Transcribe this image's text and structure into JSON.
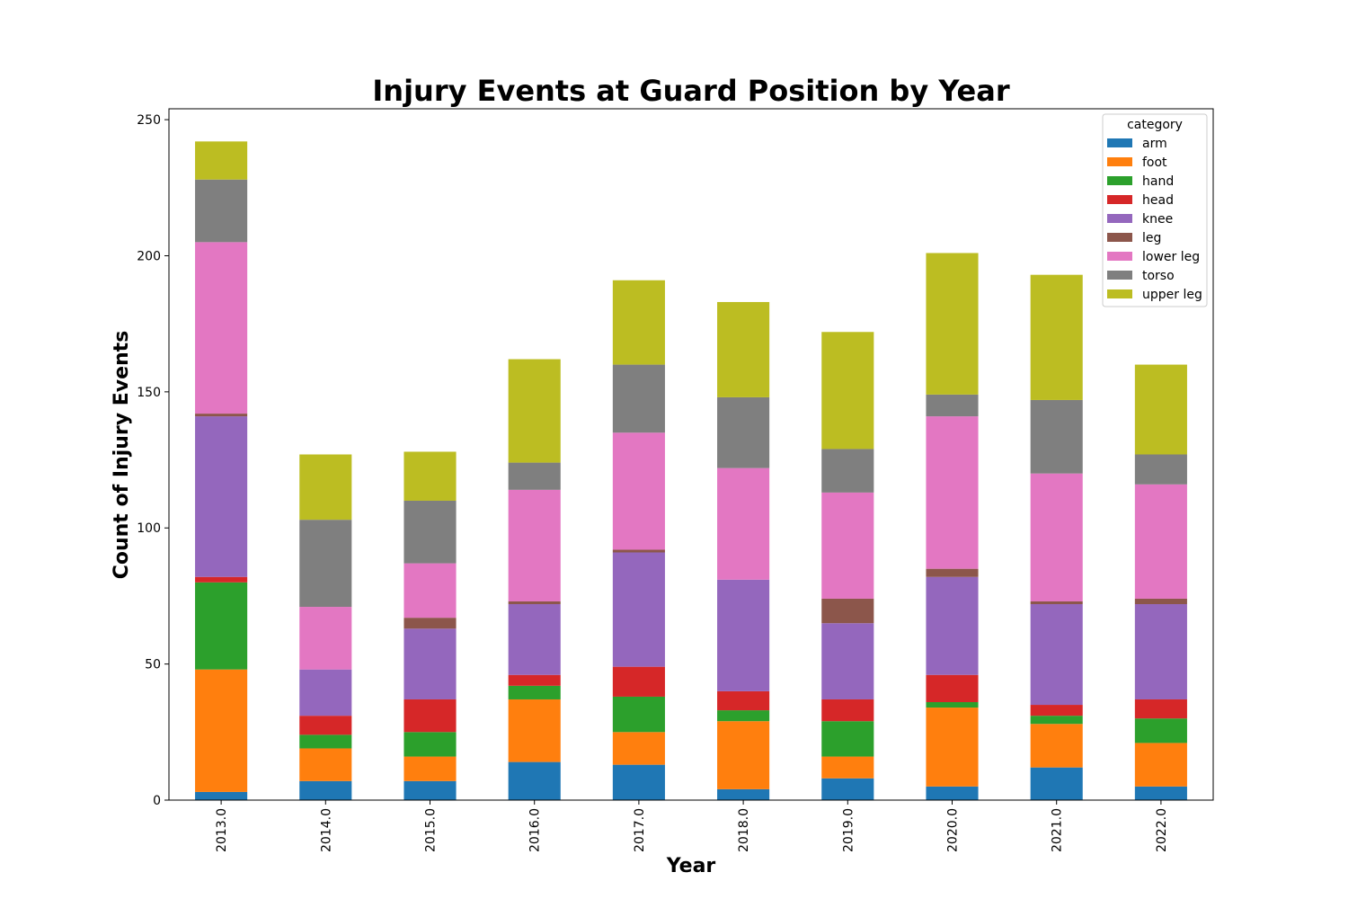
{
  "chart_data": {
    "type": "bar",
    "stacked": true,
    "title": "Injury Events at Guard Position by Year",
    "xlabel": "Year",
    "ylabel": "Count of Injury Events",
    "ylim": [
      0,
      254
    ],
    "yticks": [
      0,
      50,
      100,
      150,
      200,
      250
    ],
    "grid": false,
    "legend_title": "category",
    "legend_position": "top-right",
    "categories": [
      "2013.0",
      "2014.0",
      "2015.0",
      "2016.0",
      "2017.0",
      "2018.0",
      "2019.0",
      "2020.0",
      "2021.0",
      "2022.0"
    ],
    "series": [
      {
        "name": "arm",
        "color": "#1f77b4",
        "values": [
          3,
          7,
          7,
          14,
          13,
          4,
          8,
          5,
          12,
          5
        ]
      },
      {
        "name": "foot",
        "color": "#ff7f0e",
        "values": [
          45,
          12,
          9,
          23,
          12,
          25,
          8,
          29,
          16,
          16
        ]
      },
      {
        "name": "hand",
        "color": "#2ca02c",
        "values": [
          32,
          5,
          9,
          5,
          13,
          4,
          13,
          2,
          3,
          9
        ]
      },
      {
        "name": "head",
        "color": "#d62728",
        "values": [
          2,
          7,
          12,
          4,
          11,
          7,
          8,
          10,
          4,
          7
        ]
      },
      {
        "name": "knee",
        "color": "#9467bd",
        "values": [
          59,
          17,
          26,
          26,
          42,
          41,
          28,
          36,
          37,
          35
        ]
      },
      {
        "name": "leg",
        "color": "#8c564b",
        "values": [
          1,
          0,
          4,
          1,
          1,
          0,
          9,
          3,
          1,
          2
        ]
      },
      {
        "name": "lower leg",
        "color": "#e377c2",
        "values": [
          63,
          23,
          20,
          41,
          43,
          41,
          39,
          56,
          47,
          42
        ]
      },
      {
        "name": "torso",
        "color": "#7f7f7f",
        "values": [
          23,
          32,
          23,
          10,
          25,
          26,
          16,
          8,
          27,
          11
        ]
      },
      {
        "name": "upper leg",
        "color": "#bcbd22",
        "values": [
          14,
          24,
          18,
          38,
          31,
          35,
          43,
          52,
          46,
          33
        ]
      }
    ]
  }
}
